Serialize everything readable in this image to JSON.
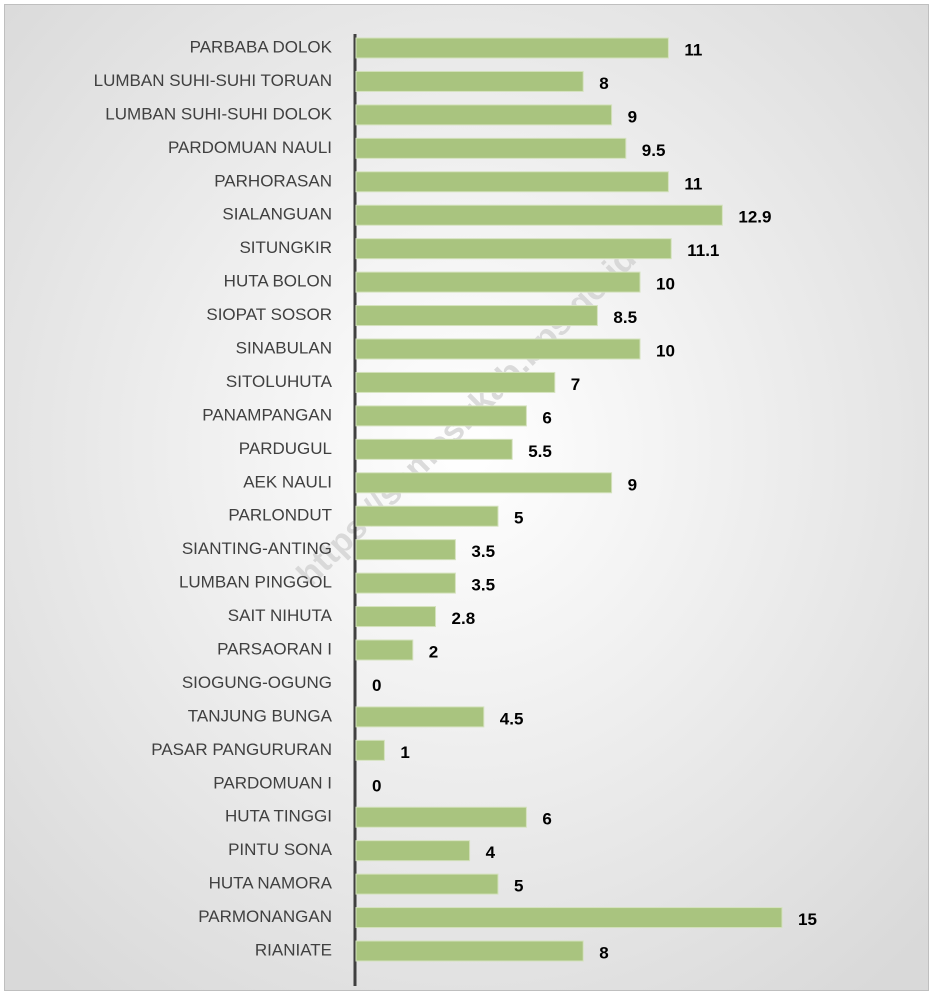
{
  "chart_data": {
    "type": "bar",
    "orientation": "horizontal",
    "watermark": "https://samosirkab.bps.go.id",
    "categories": [
      "PARBABA DOLOK",
      "LUMBAN SUHI-SUHI TORUAN",
      "LUMBAN SUHI-SUHI DOLOK",
      "PARDOMUAN NAULI",
      "PARHORASAN",
      "SIALANGUAN",
      "SITUNGKIR",
      "HUTA BOLON",
      "SIOPAT SOSOR",
      "SINABULAN",
      "SITOLUHUTA",
      "PANAMPANGAN",
      "PARDUGUL",
      "AEK NAULI",
      "PARLONDUT",
      "SIANTING-ANTING",
      "LUMBAN PINGGOL",
      "SAIT NIHUTA",
      "PARSAORAN I",
      "SIOGUNG-OGUNG",
      "TANJUNG BUNGA",
      "PASAR PANGURURAN",
      "PARDOMUAN I",
      "HUTA TINGGI",
      "PINTU SONA",
      "HUTA NAMORA",
      "PARMONANGAN",
      "RIANIATE"
    ],
    "values": [
      11,
      8,
      9,
      9.5,
      11,
      12.9,
      11.1,
      10,
      8.5,
      10,
      7,
      6,
      5.5,
      9,
      5,
      3.5,
      3.5,
      2.8,
      2,
      0,
      4.5,
      1,
      0,
      6,
      4,
      5,
      15,
      8
    ],
    "color": "#a9c47f"
  }
}
